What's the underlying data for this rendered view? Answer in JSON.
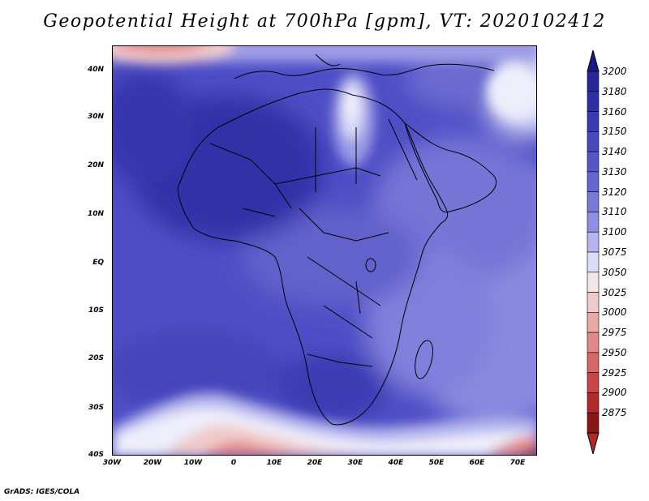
{
  "title": "Geopotential Height at 700hPa [gpm], VT: 2020102412",
  "credit": "GrADS: IGES/COLA",
  "map": {
    "lat_labels": [
      "40N",
      "30N",
      "20N",
      "10N",
      "EQ",
      "10S",
      "20S",
      "30S",
      "40S"
    ],
    "lon_labels": [
      "30W",
      "20W",
      "10W",
      "0",
      "10E",
      "20E",
      "30E",
      "40E",
      "50E",
      "60E",
      "70E"
    ],
    "lat_range": [
      -40,
      45
    ],
    "lon_range": [
      -30,
      75
    ]
  },
  "colorbar": {
    "levels": [
      "3200",
      "3180",
      "3160",
      "3150",
      "3140",
      "3130",
      "3120",
      "3110",
      "3100",
      "3075",
      "3050",
      "3025",
      "3000",
      "2975",
      "2950",
      "2925",
      "2900",
      "2875"
    ],
    "colors": [
      "#26269a",
      "#2e2ea8",
      "#3a3ab5",
      "#4848c0",
      "#5656c8",
      "#6666d0",
      "#7878d8",
      "#8e8ee2",
      "#b4b4ee",
      "#dcdcf8",
      "#f2e6e6",
      "#f0caca",
      "#eaa8a8",
      "#e28888",
      "#d86666",
      "#c84646",
      "#b02a2a",
      "#8a1616"
    ],
    "top_arrow_color": "#1a1a8a",
    "bottom_arrow_color": "#b02a2a"
  },
  "chart_data": {
    "type": "heatmap",
    "title": "Geopotential Height at 700hPa [gpm], VT: 2020102412",
    "xlabel": "",
    "ylabel": "",
    "x_ticks": [
      "30W",
      "20W",
      "10W",
      "0",
      "10E",
      "20E",
      "30E",
      "40E",
      "50E",
      "60E",
      "70E"
    ],
    "y_ticks": [
      "40N",
      "30N",
      "20N",
      "10N",
      "EQ",
      "10S",
      "20S",
      "30S",
      "40S"
    ],
    "legend_levels": [
      3200,
      3180,
      3160,
      3150,
      3140,
      3130,
      3120,
      3110,
      3100,
      3075,
      3050,
      3025,
      3000,
      2975,
      2950,
      2925,
      2900,
      2875
    ]
  }
}
